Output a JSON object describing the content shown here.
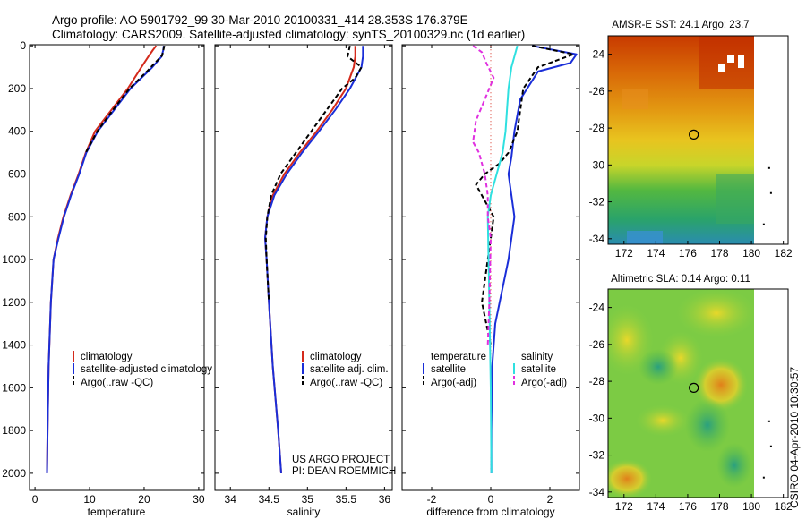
{
  "header": {
    "line1": "Argo profile: AO 5901792_99 30-Mar-2010 20100331_414 28.353S 176.379E",
    "line2": "Climatology: CARS2009. Satellite-adjusted climatology: synTS_20100329.nc (1d earlier)"
  },
  "credits": {
    "line1": "US ARGO PROJECT",
    "line2": "PI: DEAN ROEMMICH"
  },
  "side_stamp": "CSIRO 04-Apr-2010 10:30:57",
  "colors": {
    "climatology": "#d42a1c",
    "satellite": "#1a2ed8",
    "argo": "#000000",
    "satellite_sal": "#2fe0e0",
    "argo_sal": "#e030e0"
  },
  "chart_data": [
    {
      "type": "line",
      "xlabel": "temperature",
      "xlim": [
        -1,
        31
      ],
      "ylim": [
        2080,
        -5
      ],
      "xticks": [
        0,
        10,
        20,
        30
      ],
      "yticks": [
        0,
        200,
        400,
        600,
        800,
        1000,
        1200,
        1400,
        1600,
        1800,
        2000
      ],
      "legend": [
        "climatology",
        "satellite-adjusted climatology",
        "Argo(..raw -QC)"
      ],
      "series": [
        {
          "name": "climatology",
          "color": "#d42a1c",
          "dash": "",
          "x": [
            22.2,
            21.6,
            20.8,
            19.5,
            17.0,
            14.0,
            11.0,
            9.3,
            8.0,
            6.5,
            5.2,
            4.2,
            3.4,
            2.9,
            2.5,
            2.3,
            2.2
          ],
          "y": [
            0,
            20,
            50,
            100,
            200,
            300,
            400,
            500,
            600,
            700,
            800,
            900,
            1000,
            1200,
            1500,
            1800,
            2000
          ]
        },
        {
          "name": "satellite",
          "color": "#1a2ed8",
          "dash": "",
          "x": [
            23.6,
            23.5,
            23.2,
            21.5,
            17.5,
            14.5,
            11.5,
            9.4,
            8.1,
            6.6,
            5.3,
            4.3,
            3.4,
            2.9,
            2.5,
            2.3,
            2.2
          ],
          "y": [
            0,
            20,
            50,
            100,
            200,
            300,
            400,
            500,
            600,
            700,
            800,
            900,
            1000,
            1200,
            1500,
            1800,
            2000
          ]
        },
        {
          "name": "Argo",
          "color": "#000000",
          "dash": "5,3",
          "x": [
            23.7,
            23.3,
            20.5,
            17.3,
            14.3,
            11.4,
            9.3
          ],
          "y": [
            0,
            45,
            120,
            200,
            300,
            400,
            500
          ]
        }
      ]
    },
    {
      "type": "line",
      "xlabel": "salinity",
      "xlim": [
        33.8,
        36.1
      ],
      "ylim": [
        2080,
        -5
      ],
      "xticks": [
        34,
        34.5,
        35,
        35.5,
        36
      ],
      "yticks": [
        0,
        200,
        400,
        600,
        800,
        1000,
        1200,
        1400,
        1600,
        1800,
        2000
      ],
      "legend": [
        "climatology",
        "satellite adj. clim.",
        "Argo(..raw -QC)"
      ],
      "series": [
        {
          "name": "climatology",
          "color": "#d42a1c",
          "dash": "",
          "x": [
            35.62,
            35.62,
            35.6,
            35.5,
            35.32,
            35.12,
            34.9,
            34.7,
            34.55,
            34.48,
            34.45,
            34.47,
            34.5,
            34.55,
            34.62,
            34.66
          ],
          "y": [
            0,
            50,
            100,
            200,
            300,
            400,
            500,
            600,
            700,
            800,
            900,
            1000,
            1200,
            1500,
            1800,
            2000
          ]
        },
        {
          "name": "satellite",
          "color": "#1a2ed8",
          "dash": "",
          "x": [
            35.72,
            35.72,
            35.7,
            35.55,
            35.36,
            35.15,
            34.93,
            34.73,
            34.57,
            34.48,
            34.45,
            34.47,
            34.5,
            34.55,
            34.62,
            34.66
          ],
          "y": [
            0,
            50,
            100,
            200,
            300,
            400,
            500,
            600,
            700,
            800,
            900,
            1000,
            1200,
            1500,
            1800,
            2000
          ]
        },
        {
          "name": "Argo",
          "color": "#000000",
          "dash": "5,3",
          "x": [
            35.55,
            35.52,
            35.7,
            35.62,
            35.45,
            35.25,
            35.05,
            34.85,
            34.65,
            34.53,
            34.48,
            34.46,
            34.47,
            34.5
          ],
          "y": [
            0,
            50,
            100,
            150,
            200,
            300,
            400,
            500,
            600,
            700,
            800,
            900,
            1000,
            1200
          ]
        }
      ]
    },
    {
      "type": "line",
      "xlabel": "difference from climatology",
      "xlim": [
        -3,
        3
      ],
      "ylim": [
        2080,
        -5
      ],
      "xticks": [
        -2,
        0,
        2
      ],
      "yticks": [
        0,
        200,
        400,
        600,
        800,
        1000,
        1200,
        1400,
        1600,
        1800,
        2000
      ],
      "legend_header": [
        "temperature",
        "salinity"
      ],
      "legend": [
        "satellite",
        "Argo(-adj)",
        "satellite",
        "Argo(-adj)"
      ],
      "series": [
        {
          "name": "zero",
          "color": "#d42a1c",
          "dash": "1,3",
          "x": [
            0,
            0
          ],
          "y": [
            0,
            2000
          ]
        },
        {
          "name": "satellite",
          "color": "#1a2ed8",
          "dash": "",
          "x": [
            1.4,
            2.9,
            2.7,
            1.6,
            1.0,
            0.8,
            0.7,
            0.6,
            0.7,
            0.8,
            0.6,
            0.3,
            0.15,
            0.05,
            0.02,
            0.02
          ],
          "y": [
            0,
            40,
            80,
            120,
            250,
            400,
            520,
            600,
            700,
            800,
            1000,
            1200,
            1300,
            1500,
            1800,
            2000
          ]
        },
        {
          "name": "Argo(-adj)",
          "color": "#000000",
          "dash": "5,3",
          "x": [
            1.4,
            2.8,
            1.6,
            1.1,
            1.0,
            0.9,
            0.6,
            0.3,
            -0.2,
            -0.5,
            -0.3,
            0.1,
            -0.2,
            -0.3,
            0.0
          ],
          "y": [
            0,
            40,
            100,
            200,
            300,
            400,
            500,
            550,
            600,
            650,
            700,
            800,
            1100,
            1200,
            1400
          ]
        },
        {
          "name": "satellite",
          "color": "#2fe0e0",
          "dash": "",
          "x": [
            0.9,
            0.8,
            0.7,
            0.6,
            0.55,
            0.5,
            0.4,
            0.2,
            0.0,
            -0.1,
            -0.05,
            0.0,
            0.02
          ],
          "y": [
            0,
            50,
            100,
            200,
            300,
            400,
            500,
            600,
            700,
            800,
            1200,
            1600,
            2000
          ]
        },
        {
          "name": "Argo(-adj)",
          "color": "#e030e0",
          "dash": "5,3",
          "x": [
            -0.6,
            -0.3,
            -0.15,
            0.1,
            -0.2,
            -0.5,
            -0.6,
            -0.4,
            -0.2,
            -0.1,
            -0.1,
            0.0,
            -0.05,
            -0.1
          ],
          "y": [
            0,
            30,
            80,
            150,
            250,
            350,
            450,
            500,
            600,
            700,
            800,
            900,
            1200,
            1400
          ]
        }
      ]
    },
    {
      "type": "heatmap",
      "title": "AMSR-E SST: 24.1  Argo: 23.7",
      "xlim": [
        171,
        182.3
      ],
      "ylim": [
        -34.3,
        -23
      ],
      "xticks": [
        172,
        174,
        176,
        178,
        180,
        182
      ],
      "yticks": [
        -24,
        -26,
        -28,
        -30,
        -32,
        -34
      ],
      "data_xlim": [
        171,
        180
      ],
      "marker": {
        "x": 176.379,
        "y": -28.353
      }
    },
    {
      "type": "heatmap",
      "title": "Altimetric SLA: 0.14  Argo: 0.11",
      "xlim": [
        171,
        182.3
      ],
      "ylim": [
        -34.3,
        -23
      ],
      "xticks": [
        172,
        174,
        176,
        178,
        180,
        182
      ],
      "yticks": [
        -24,
        -26,
        -28,
        -30,
        -32,
        -34
      ],
      "data_xlim": [
        171,
        180
      ],
      "marker": {
        "x": 176.379,
        "y": -28.353
      }
    }
  ]
}
